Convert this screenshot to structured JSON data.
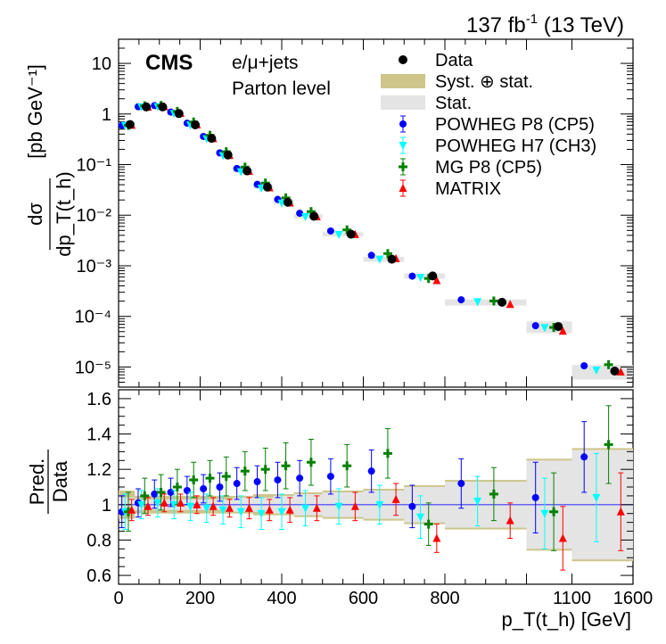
{
  "header": {
    "lumi": "137 fb",
    "lumi_exp": "-1",
    "energy": " (13 TeV)",
    "cms": "CMS",
    "channel": "e/μ+jets",
    "level": "Parton level"
  },
  "legend": [
    {
      "label": "Data",
      "kind": "data"
    },
    {
      "label": "Syst. ⊕ stat.",
      "kind": "syst"
    },
    {
      "label": "Stat.",
      "kind": "stat"
    },
    {
      "label": "POWHEG P8 (CP5)",
      "kind": "powheg_p8"
    },
    {
      "label": "POWHEG H7 (CH3)",
      "kind": "powheg_h7"
    },
    {
      "label": "MG P8 (CP5)",
      "kind": "mg_p8"
    },
    {
      "label": "MATRIX",
      "kind": "matrix"
    }
  ],
  "colors": {
    "syst": "#cdc58a",
    "stat": "#e4e4e4",
    "powheg_p8": "#0000ff",
    "powheg_h7": "#00ffff",
    "mg_p8": "#008000",
    "matrix": "#ff0000",
    "data": "#000000",
    "ref_line": "#3a3aff"
  },
  "chart_data": [
    {
      "type": "scatter",
      "panel": "cross-section",
      "ylabel_num": "dσ",
      "ylabel_den": "dp_T(t_h)",
      "ylabel_unit": "[pb GeV⁻¹]",
      "yscale": "log",
      "ylim": [
        4e-06,
        30
      ],
      "yticks": [
        {
          "v": 1e-05,
          "label": "10⁻⁵"
        },
        {
          "v": 0.0001,
          "label": "10⁻⁴"
        },
        {
          "v": 0.001,
          "label": "10⁻³"
        },
        {
          "v": 0.01,
          "label": "10⁻²"
        },
        {
          "v": 0.1,
          "label": "10⁻¹"
        },
        {
          "v": 1,
          "label": "1"
        },
        {
          "v": 10,
          "label": "10"
        }
      ],
      "bins": [
        "0-40",
        "40-80",
        "80-120",
        "120-160",
        "160-200",
        "200-240",
        "240-280",
        "280-330",
        "330-380",
        "380-430",
        "430-500",
        "500-600",
        "600-700",
        "700-800",
        "800-1000",
        "1000-1100",
        "1100-1600"
      ],
      "data": [
        0.62,
        1.38,
        1.38,
        1.02,
        0.61,
        0.33,
        0.155,
        0.075,
        0.036,
        0.018,
        0.0095,
        0.0042,
        0.00135,
        0.00063,
        0.00019,
        6.3e-05,
        8.3e-06
      ],
      "total_unc": [
        0.1,
        0.06,
        0.05,
        0.05,
        0.06,
        0.06,
        0.07,
        0.07,
        0.08,
        0.09,
        0.09,
        0.1,
        0.11,
        0.12,
        0.14,
        0.26,
        0.32
      ]
    },
    {
      "type": "scatter",
      "panel": "ratio",
      "ylabel_num": "Pred.",
      "ylabel_den": "Data",
      "xlabel": "p_T(t_h) [GeV]",
      "ylim": [
        0.55,
        1.65
      ],
      "yticks": [
        0.6,
        0.8,
        1.0,
        1.2,
        1.4,
        1.6
      ],
      "xticks": [
        {
          "v": 0,
          "label": "0"
        },
        {
          "v": 200,
          "label": "200"
        },
        {
          "v": 400,
          "label": "400"
        },
        {
          "v": 600,
          "label": "600"
        },
        {
          "v": 800,
          "label": "800"
        },
        {
          "v": 1100,
          "label": "1100"
        },
        {
          "v": 1600,
          "label": "1600"
        }
      ],
      "x_axis": "piecewise: 0-1000 linear, 1000-1100 compressed, 1100-1600 compressed",
      "series": [
        {
          "name": "POWHEG P8 (CP5)",
          "key": "powheg_p8",
          "values": [
            0.96,
            1.01,
            1.06,
            1.07,
            1.08,
            1.09,
            1.1,
            1.12,
            1.13,
            1.14,
            1.15,
            1.16,
            1.19,
            0.99,
            1.12,
            1.04,
            1.27
          ],
          "err": [
            0.09,
            0.08,
            0.08,
            0.08,
            0.08,
            0.08,
            0.08,
            0.09,
            0.09,
            0.1,
            0.1,
            0.1,
            0.12,
            0.12,
            0.14,
            0.2,
            0.2
          ]
        },
        {
          "name": "POWHEG H7 (CH3)",
          "key": "powheg_h7",
          "values": [
            0.96,
            1.0,
            1.01,
            1.0,
            0.99,
            0.98,
            0.97,
            0.96,
            0.95,
            0.96,
            0.98,
            0.99,
            1.0,
            0.93,
            1.02,
            0.95,
            1.04
          ],
          "err": [
            0.1,
            0.08,
            0.08,
            0.08,
            0.08,
            0.08,
            0.08,
            0.09,
            0.09,
            0.1,
            0.1,
            0.1,
            0.11,
            0.12,
            0.14,
            0.2,
            0.25
          ]
        },
        {
          "name": "MG P8 (CP5)",
          "key": "mg_p8",
          "values": [
            0.96,
            1.05,
            1.07,
            1.1,
            1.14,
            1.15,
            1.16,
            1.19,
            1.2,
            1.22,
            1.24,
            1.22,
            1.29,
            0.89,
            1.06,
            0.96,
            1.34
          ],
          "err": [
            0.11,
            0.1,
            0.1,
            0.1,
            0.1,
            0.1,
            0.11,
            0.11,
            0.12,
            0.13,
            0.13,
            0.12,
            0.14,
            0.12,
            0.15,
            0.22,
            0.22
          ]
        },
        {
          "name": "MATRIX",
          "key": "matrix",
          "values": [
            0.97,
            0.99,
            1.01,
            1.01,
            1.0,
            0.99,
            0.98,
            0.98,
            0.97,
            0.97,
            0.98,
            0.99,
            1.03,
            0.81,
            0.91,
            0.81,
            0.96
          ],
          "err": [
            0.06,
            0.05,
            0.05,
            0.05,
            0.05,
            0.05,
            0.05,
            0.06,
            0.06,
            0.07,
            0.07,
            0.08,
            0.09,
            0.08,
            0.1,
            0.18,
            0.22
          ]
        }
      ],
      "syst_band": [
        0.08,
        0.05,
        0.05,
        0.05,
        0.05,
        0.05,
        0.05,
        0.05,
        0.06,
        0.06,
        0.07,
        0.08,
        0.09,
        0.11,
        0.14,
        0.26,
        0.32
      ],
      "stat_band": [
        0.04,
        0.03,
        0.03,
        0.03,
        0.03,
        0.03,
        0.03,
        0.04,
        0.04,
        0.05,
        0.06,
        0.07,
        0.08,
        0.1,
        0.13,
        0.25,
        0.31
      ]
    }
  ]
}
